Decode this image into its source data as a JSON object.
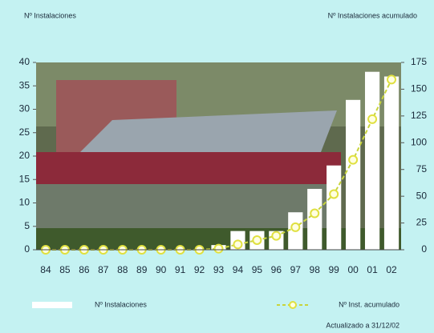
{
  "chart_data": {
    "type": "bar",
    "y_axis_label": "Nº Instalaciones",
    "y2_axis_label": "Nº Instalaciones acumulado",
    "categories": [
      "84",
      "85",
      "86",
      "87",
      "88",
      "89",
      "90",
      "91",
      "92",
      "93",
      "94",
      "95",
      "96",
      "97",
      "98",
      "99",
      "00",
      "01",
      "02"
    ],
    "series": [
      {
        "name": "Nº Instalaciones",
        "type": "bar",
        "color": "#ffffff",
        "values": [
          0,
          0,
          0,
          0,
          0,
          0,
          0,
          0,
          0,
          1,
          4,
          4,
          4,
          8,
          13,
          18,
          32,
          38,
          37
        ]
      },
      {
        "name": "Nº Inst. acumulado",
        "type": "line",
        "axis": "y2",
        "color": "#c8d43c",
        "values": [
          0,
          0,
          0,
          0,
          0,
          0,
          0,
          0,
          0,
          1,
          5,
          9,
          13,
          21,
          34,
          52,
          84,
          122,
          159
        ]
      }
    ],
    "ylim": [
      0,
      40
    ],
    "yticks": [
      0,
      5,
      10,
      15,
      20,
      25,
      30,
      35,
      40
    ],
    "y2lim": [
      0,
      175
    ],
    "y2ticks": [
      0,
      25,
      50,
      75,
      100,
      125,
      150,
      175
    ],
    "note": "Actualizado a 31/12/02"
  }
}
